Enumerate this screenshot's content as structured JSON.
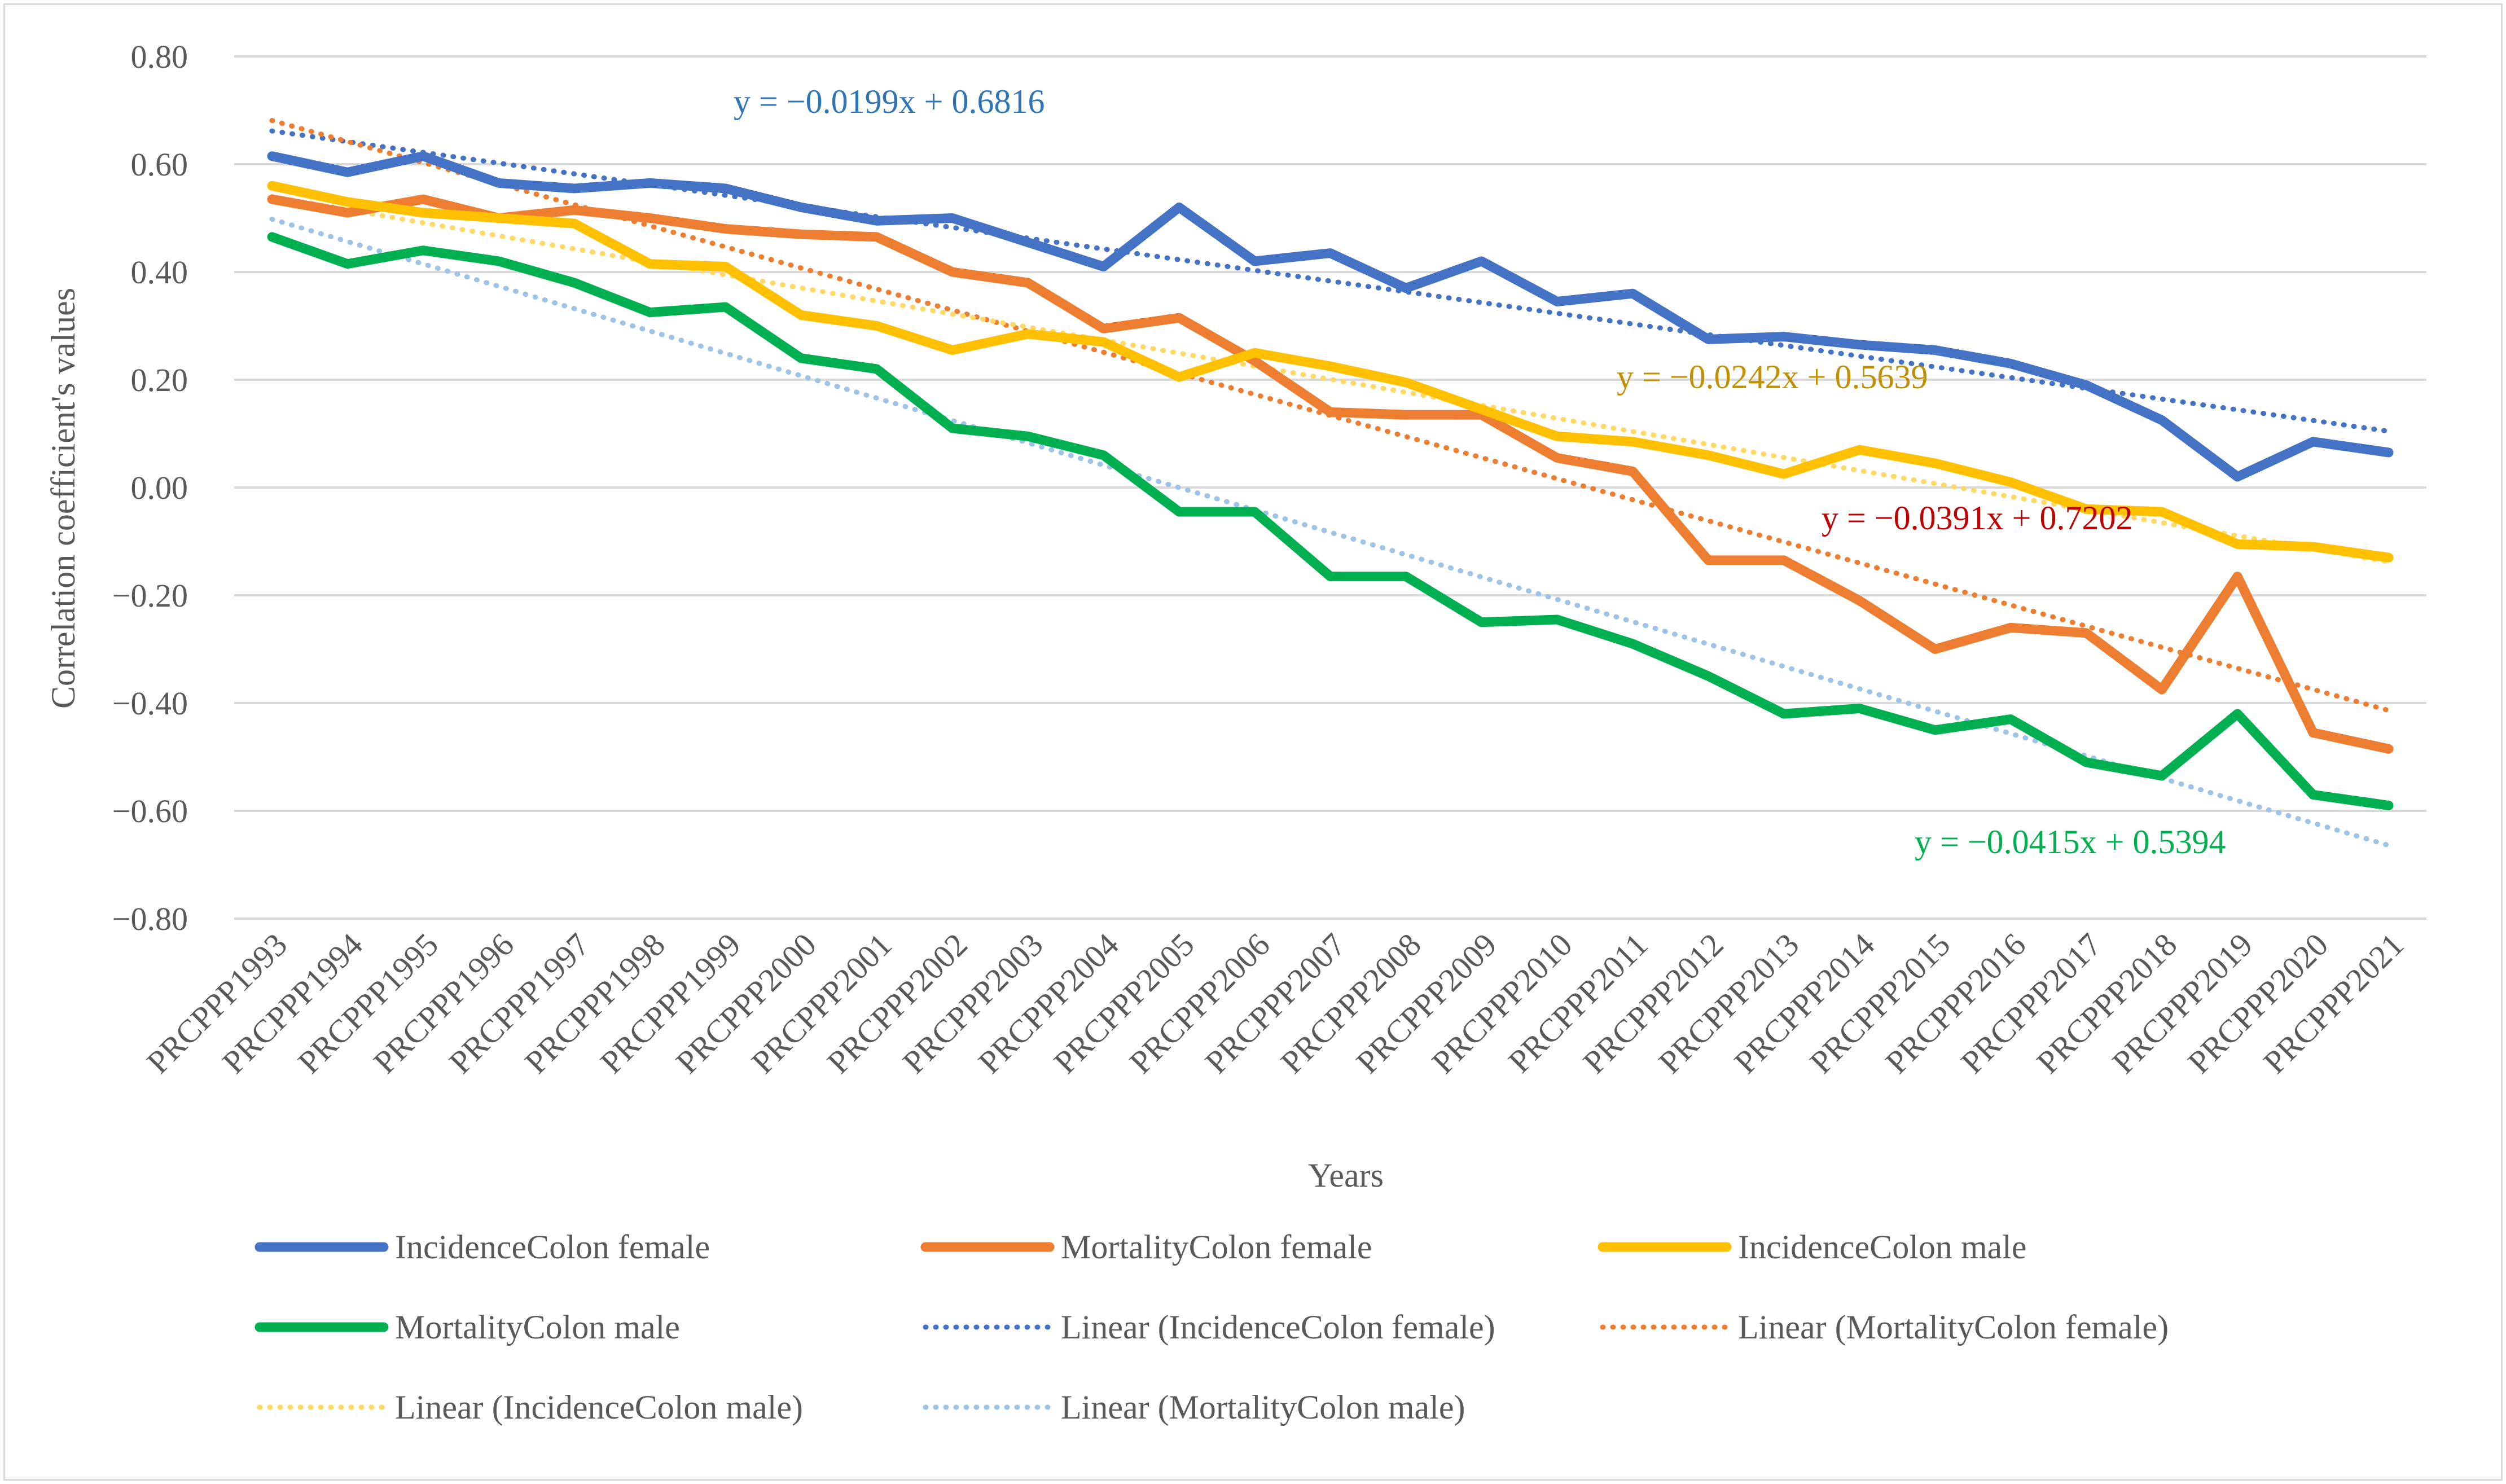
{
  "chart_data": {
    "type": "line",
    "title": "",
    "xlabel": "Years",
    "ylabel": "Correlation coefficient's values",
    "ylim": [
      -0.8,
      0.8
    ],
    "yticks": [
      "0.80",
      "0.60",
      "0.40",
      "0.20",
      "0.00",
      "−0.20",
      "−0.40",
      "−0.60",
      "−0.80"
    ],
    "ytick_values": [
      0.8,
      0.6,
      0.4,
      0.2,
      0.0,
      -0.2,
      -0.4,
      -0.6,
      -0.8
    ],
    "grid": true,
    "legend_position": "bottom",
    "categories": [
      "PRCPPP1993",
      "PRCPPP1994",
      "PRCPPP1995",
      "PRCPPP1996",
      "PRCPPP1997",
      "PRCPPP1998",
      "PRCPPP1999",
      "PRCPPP2000",
      "PRCPPP2001",
      "PRCPPP2002",
      "PRCPPP2003",
      "PRCPPP2004",
      "PRCPPP2005",
      "PRCPPP2006",
      "PRCPPP2007",
      "PRCPPP2008",
      "PRCPPP2009",
      "PRCPPP2010",
      "PRCPPP2011",
      "PRCPPP2012",
      "PRCPPP2013",
      "PRCPPP2014",
      "PRCPPP2015",
      "PRCPPP2016",
      "PRCPPP2017",
      "PRCPPP2018",
      "PRCPPP2019",
      "PRCPPP2020",
      "PRCPPP2021"
    ],
    "series": [
      {
        "name": "IncidenceColon female",
        "color": "#4472c4",
        "style": "solid",
        "values": [
          0.615,
          0.585,
          0.615,
          0.565,
          0.555,
          0.565,
          0.555,
          0.52,
          0.495,
          0.5,
          0.455,
          0.41,
          0.52,
          0.42,
          0.435,
          0.37,
          0.42,
          0.345,
          0.36,
          0.275,
          0.28,
          0.265,
          0.255,
          0.23,
          0.19,
          0.125,
          0.02,
          0.085,
          0.065
        ]
      },
      {
        "name": "MortalityColon female",
        "color": "#ed7d31",
        "style": "solid",
        "values": [
          0.535,
          0.51,
          0.535,
          0.5,
          0.515,
          0.5,
          0.48,
          0.47,
          0.465,
          0.4,
          0.38,
          0.295,
          0.315,
          0.235,
          0.14,
          0.135,
          0.135,
          0.055,
          0.03,
          -0.135,
          -0.135,
          -0.21,
          -0.3,
          -0.26,
          -0.27,
          -0.375,
          -0.165,
          -0.455,
          -0.485
        ]
      },
      {
        "name": "IncidenceColon male",
        "color": "#ffc000",
        "style": "solid",
        "values": [
          0.56,
          0.53,
          0.51,
          0.5,
          0.49,
          0.415,
          0.41,
          0.32,
          0.3,
          0.255,
          0.285,
          0.27,
          0.205,
          0.25,
          0.225,
          0.195,
          0.145,
          0.095,
          0.085,
          0.06,
          0.025,
          0.07,
          0.045,
          0.01,
          -0.04,
          -0.045,
          -0.105,
          -0.11,
          -0.13
        ]
      },
      {
        "name": "MortalityColon male",
        "color": "#00b050",
        "style": "solid",
        "values": [
          0.465,
          0.415,
          0.44,
          0.42,
          0.38,
          0.325,
          0.335,
          0.24,
          0.22,
          0.11,
          0.095,
          0.06,
          -0.045,
          -0.045,
          -0.165,
          -0.165,
          -0.25,
          -0.245,
          -0.29,
          -0.35,
          -0.42,
          -0.41,
          -0.45,
          -0.43,
          -0.51,
          -0.535,
          -0.42,
          -0.57,
          -0.59
        ]
      },
      {
        "name": "Linear (IncidenceColon female)",
        "color": "#4472c4",
        "style": "dotted",
        "trend": {
          "slope": -0.0199,
          "intercept": 0.6816
        }
      },
      {
        "name": "Linear (MortalityColon female)",
        "color": "#ed7d31",
        "style": "dotted",
        "trend": {
          "slope": -0.0391,
          "intercept": 0.7202
        }
      },
      {
        "name": "Linear (IncidenceColon male)",
        "color": "#ffd966",
        "style": "dotted",
        "trend": {
          "slope": -0.0242,
          "intercept": 0.5639
        }
      },
      {
        "name": "Linear (MortalityColon male)",
        "color": "#9dc3e6",
        "style": "dotted",
        "trend": {
          "slope": -0.0415,
          "intercept": 0.5394
        }
      }
    ],
    "annotations": [
      {
        "text": "y = −0.0199x + 0.6816",
        "color": "#2e75b6"
      },
      {
        "text": "y = −0.0242x + 0.5639",
        "color": "#bf9000"
      },
      {
        "text": "y = −0.0391x + 0.7202",
        "color": "#c00000"
      },
      {
        "text": "y = −0.0415x + 0.5394",
        "color": "#00b050"
      }
    ]
  }
}
